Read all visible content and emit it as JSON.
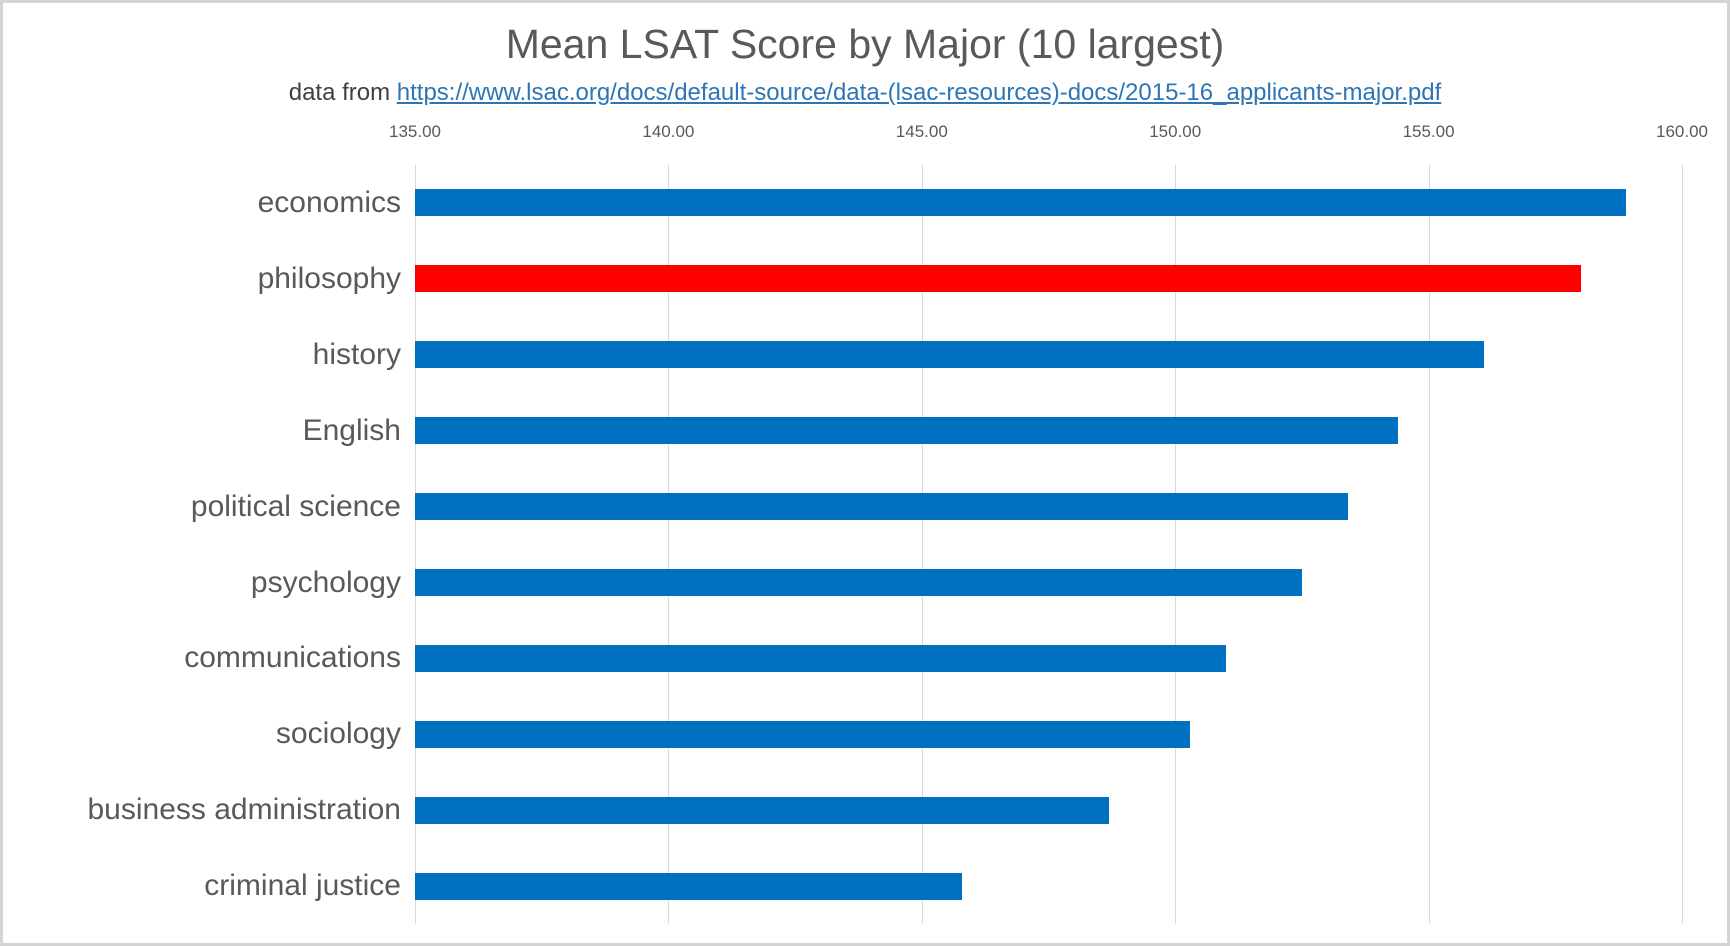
{
  "chart_data": {
    "type": "bar",
    "orientation": "horizontal",
    "title": "Mean LSAT Score by Major (10 largest)",
    "subtitle_prefix": "data from ",
    "source_link_text": "https://www.lsac.org/docs/default-source/data-(lsac-resources)-docs/2015-16_applicants-major.pdf",
    "categories": [
      "economics",
      "philosophy",
      "history",
      "English",
      "political science",
      "psychology",
      "communications",
      "sociology",
      "business administration",
      "criminal justice"
    ],
    "values": [
      158.9,
      158.0,
      156.1,
      154.4,
      153.4,
      152.5,
      151.0,
      150.3,
      148.7,
      145.8
    ],
    "highlight_category": "philosophy",
    "xlim": [
      135,
      160
    ],
    "x_tick_values": [
      135,
      140,
      145,
      150,
      155,
      160
    ],
    "x_tick_labels": [
      "135.00",
      "140.00",
      "145.00",
      "150.00",
      "155.00",
      "160.00"
    ],
    "grid": true,
    "legend": false,
    "xlabel": "",
    "ylabel": ""
  },
  "colors": {
    "bar_default": "#0070c0",
    "bar_highlight": "#ff0000",
    "gridline": "#d9d9d9",
    "title_text": "#595959",
    "subtitle_text": "#404040",
    "link": "#2e75b6",
    "frame": "#d4d4d4"
  }
}
